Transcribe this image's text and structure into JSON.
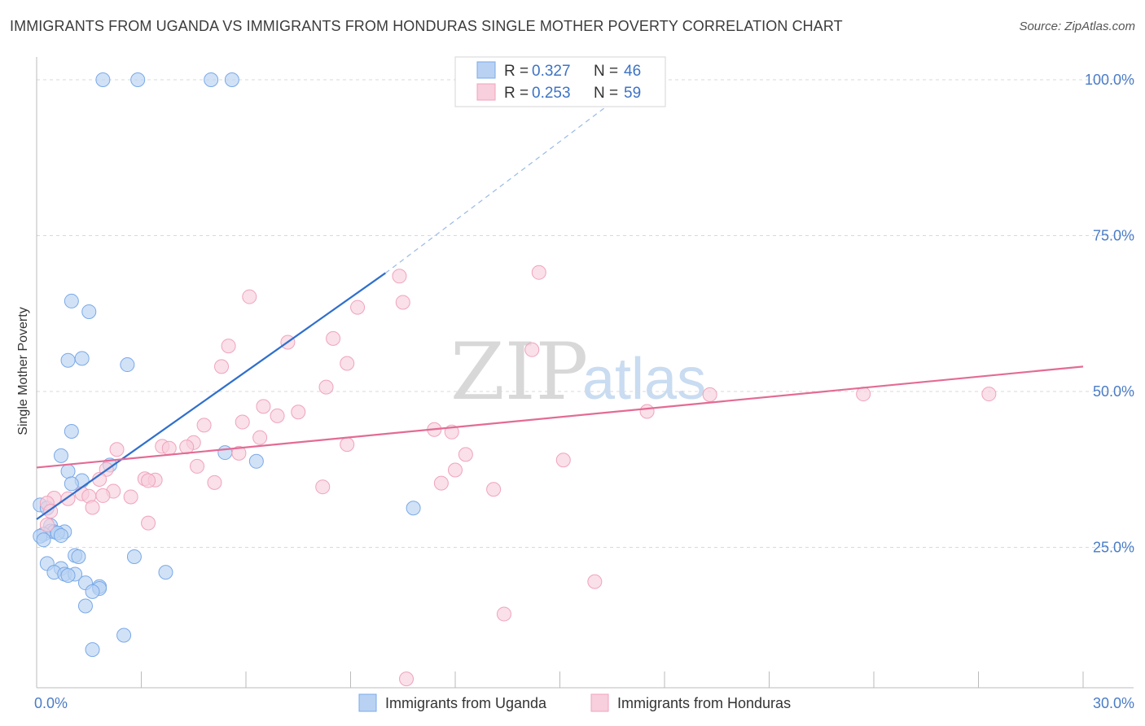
{
  "chart_data": {
    "type": "scatter",
    "title": "IMMIGRANTS FROM UGANDA VS IMMIGRANTS FROM HONDURAS SINGLE MOTHER POVERTY CORRELATION CHART",
    "source": "Source: ZipAtlas.com",
    "ylabel": "Single Mother Poverty",
    "xlabel": "",
    "xlim": [
      0,
      30
    ],
    "ylim": [
      0,
      105
    ],
    "x_tick_labels": [
      {
        "value": 0,
        "label": "0.0%"
      },
      {
        "value": 30,
        "label": "30.0%"
      }
    ],
    "y_tick_labels": [
      {
        "value": 25,
        "label": "25.0%"
      },
      {
        "value": 50,
        "label": "50.0%"
      },
      {
        "value": 75,
        "label": "75.0%"
      },
      {
        "value": 100,
        "label": "100.0%"
      }
    ],
    "watermark": {
      "zip": "ZIP",
      "atlas": "atlas"
    },
    "legend": [
      {
        "r_label": "R = ",
        "r_value": "0.327",
        "n_label": "N = ",
        "n_value": "46"
      },
      {
        "r_label": "R = ",
        "r_value": "0.253",
        "n_label": "N = ",
        "n_value": "59"
      }
    ],
    "series": [
      {
        "name": "Immigrants from Uganda",
        "color": "#7aa9e8",
        "fill": "#b9d2f3",
        "line_color": "#2f6fcd",
        "trend": {
          "x0": 0,
          "y0": 29.5,
          "x1": 10,
          "y1": 69,
          "dash_to_x": 16.4,
          "dash_to_y": 96
        },
        "points": [
          [
            1.9,
            100
          ],
          [
            2.9,
            100
          ],
          [
            5.0,
            100
          ],
          [
            5.6,
            100
          ],
          [
            1.0,
            64.5
          ],
          [
            1.5,
            62.8
          ],
          [
            1.3,
            55.3
          ],
          [
            0.9,
            55.0
          ],
          [
            2.6,
            54.3
          ],
          [
            1.0,
            43.6
          ],
          [
            0.7,
            39.7
          ],
          [
            5.4,
            40.2
          ],
          [
            6.3,
            38.8
          ],
          [
            2.1,
            38.2
          ],
          [
            0.9,
            37.2
          ],
          [
            1.3,
            35.7
          ],
          [
            1.0,
            35.2
          ],
          [
            0.1,
            31.8
          ],
          [
            0.3,
            31.3
          ],
          [
            10.8,
            31.3
          ],
          [
            0.4,
            28.5
          ],
          [
            0.4,
            27.6
          ],
          [
            0.5,
            27.5
          ],
          [
            0.8,
            27.5
          ],
          [
            0.6,
            27.3
          ],
          [
            0.2,
            27.1
          ],
          [
            0.7,
            26.9
          ],
          [
            0.1,
            26.8
          ],
          [
            0.2,
            26.2
          ],
          [
            1.1,
            23.7
          ],
          [
            1.2,
            23.5
          ],
          [
            2.8,
            23.5
          ],
          [
            0.3,
            22.4
          ],
          [
            0.7,
            21.6
          ],
          [
            0.5,
            21.0
          ],
          [
            3.7,
            21.0
          ],
          [
            0.8,
            20.7
          ],
          [
            1.1,
            20.7
          ],
          [
            0.9,
            20.5
          ],
          [
            1.4,
            19.3
          ],
          [
            1.8,
            18.7
          ],
          [
            1.8,
            18.4
          ],
          [
            1.6,
            17.9
          ],
          [
            1.4,
            15.6
          ],
          [
            2.5,
            10.9
          ],
          [
            1.6,
            8.6
          ]
        ]
      },
      {
        "name": "Immigrants from Honduras",
        "color": "#f0a3bd",
        "fill": "#f8cfdc",
        "line_color": "#e36b95",
        "trend": {
          "x0": 0,
          "y0": 37.8,
          "x1": 30,
          "y1": 54.0
        },
        "points": [
          [
            10.4,
            68.5
          ],
          [
            14.4,
            69.1
          ],
          [
            6.1,
            65.2
          ],
          [
            10.5,
            64.3
          ],
          [
            9.2,
            63.5
          ],
          [
            8.5,
            58.5
          ],
          [
            7.2,
            57.9
          ],
          [
            5.5,
            57.3
          ],
          [
            14.2,
            56.7
          ],
          [
            8.9,
            54.5
          ],
          [
            5.3,
            54.0
          ],
          [
            8.3,
            50.7
          ],
          [
            19.3,
            49.5
          ],
          [
            23.7,
            49.6
          ],
          [
            27.3,
            49.6
          ],
          [
            6.5,
            47.6
          ],
          [
            7.5,
            46.7
          ],
          [
            6.9,
            46.1
          ],
          [
            17.5,
            46.8
          ],
          [
            5.9,
            45.1
          ],
          [
            4.8,
            44.6
          ],
          [
            11.4,
            43.9
          ],
          [
            11.9,
            43.5
          ],
          [
            6.4,
            42.6
          ],
          [
            4.5,
            41.8
          ],
          [
            3.6,
            41.2
          ],
          [
            4.3,
            41.1
          ],
          [
            3.8,
            40.9
          ],
          [
            8.9,
            41.5
          ],
          [
            12.3,
            39.9
          ],
          [
            5.8,
            40.1
          ],
          [
            2.3,
            40.7
          ],
          [
            15.1,
            39.0
          ],
          [
            4.6,
            38.0
          ],
          [
            12.0,
            37.4
          ],
          [
            2.0,
            37.5
          ],
          [
            3.1,
            36.0
          ],
          [
            3.4,
            35.8
          ],
          [
            3.2,
            35.7
          ],
          [
            1.8,
            35.9
          ],
          [
            5.1,
            35.4
          ],
          [
            11.6,
            35.3
          ],
          [
            8.2,
            34.7
          ],
          [
            13.1,
            34.3
          ],
          [
            2.2,
            34.0
          ],
          [
            1.3,
            33.6
          ],
          [
            1.9,
            33.3
          ],
          [
            1.5,
            33.2
          ],
          [
            0.5,
            32.9
          ],
          [
            0.9,
            32.8
          ],
          [
            0.3,
            32.1
          ],
          [
            1.6,
            31.4
          ],
          [
            0.4,
            30.8
          ],
          [
            3.2,
            28.9
          ],
          [
            0.3,
            28.6
          ],
          [
            16.0,
            19.5
          ],
          [
            13.4,
            14.3
          ],
          [
            10.6,
            3.9
          ],
          [
            2.7,
            33.1
          ]
        ]
      }
    ]
  }
}
